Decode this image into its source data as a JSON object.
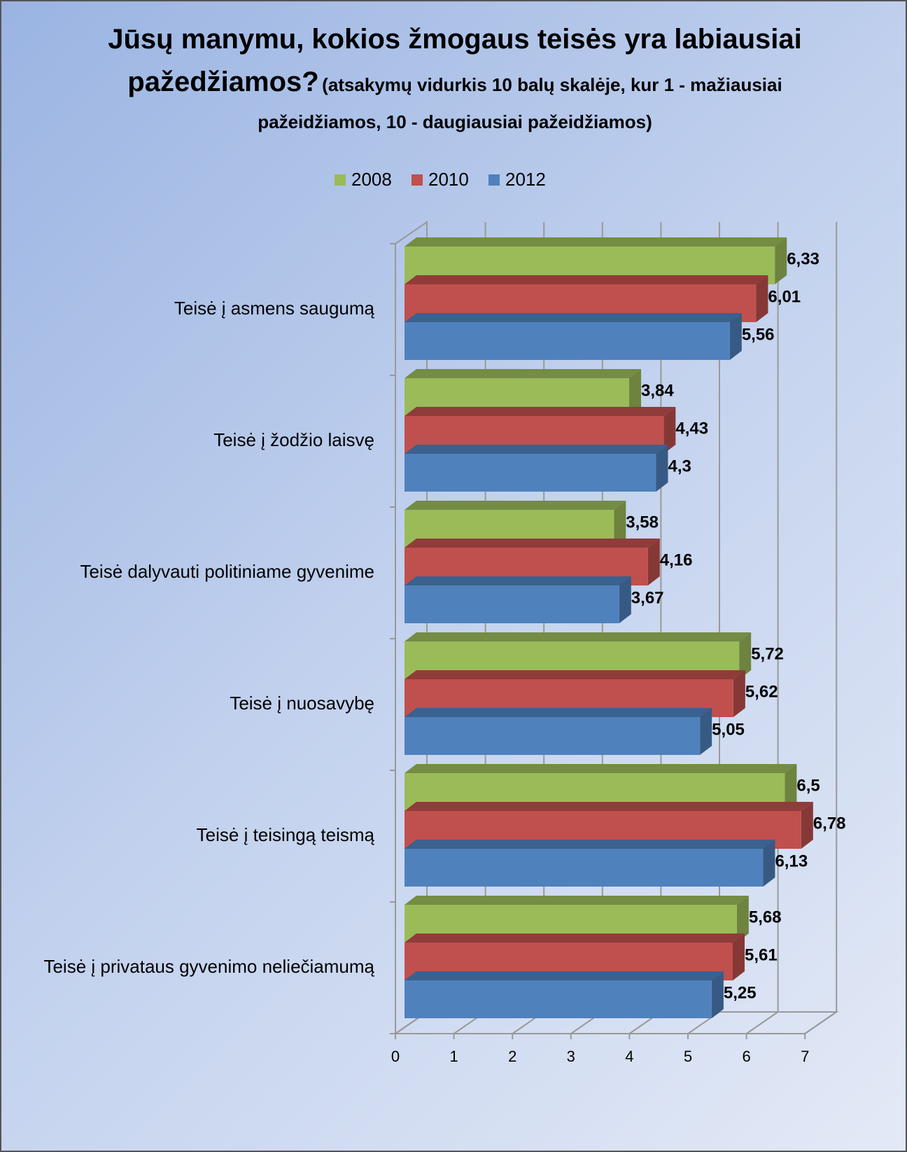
{
  "chart_data": {
    "type": "bar3d-horizontal",
    "title": "Jūsų manymu, kokios žmogaus teisės yra labiausiai pažedžiamos?",
    "subtitle": "(atsakymų vidurkis 10 balų skalėje, kur 1 - mažiausiai pažeidžiamos, 10 - daugiausiai pažeidžiamos)",
    "categories": [
      "Teisė į asmens saugumą",
      "Teisė į žodžio laisvę",
      "Teisė dalyvauti politiniame gyvenime",
      "Teisė į nuosavybę",
      "Teisė į teisingą teismą",
      "Teisė į privataus gyvenimo neliečiamumą"
    ],
    "series": [
      {
        "name": "2008",
        "color": "#9bbb59",
        "values": [
          6.33,
          3.84,
          3.58,
          5.72,
          6.5,
          5.68
        ],
        "value_labels": [
          "6,33",
          "3,84",
          "3,58",
          "5,72",
          "6,5",
          "5,68"
        ]
      },
      {
        "name": "2010",
        "color": "#c0504d",
        "values": [
          6.01,
          4.43,
          4.16,
          5.62,
          6.78,
          5.61
        ],
        "value_labels": [
          "6,01",
          "4,43",
          "4,16",
          "5,62",
          "6,78",
          "5,61"
        ]
      },
      {
        "name": "2012",
        "color": "#4f81bd",
        "values": [
          5.56,
          4.3,
          3.67,
          5.05,
          6.13,
          5.25
        ],
        "value_labels": [
          "5,56",
          "4,3",
          "3,67",
          "5,05",
          "6,13",
          "5,25"
        ]
      }
    ],
    "xlim": [
      0,
      7
    ],
    "xticks": [
      0,
      1,
      2,
      3,
      4,
      5,
      6,
      7
    ],
    "grid": true,
    "legend": "top"
  }
}
